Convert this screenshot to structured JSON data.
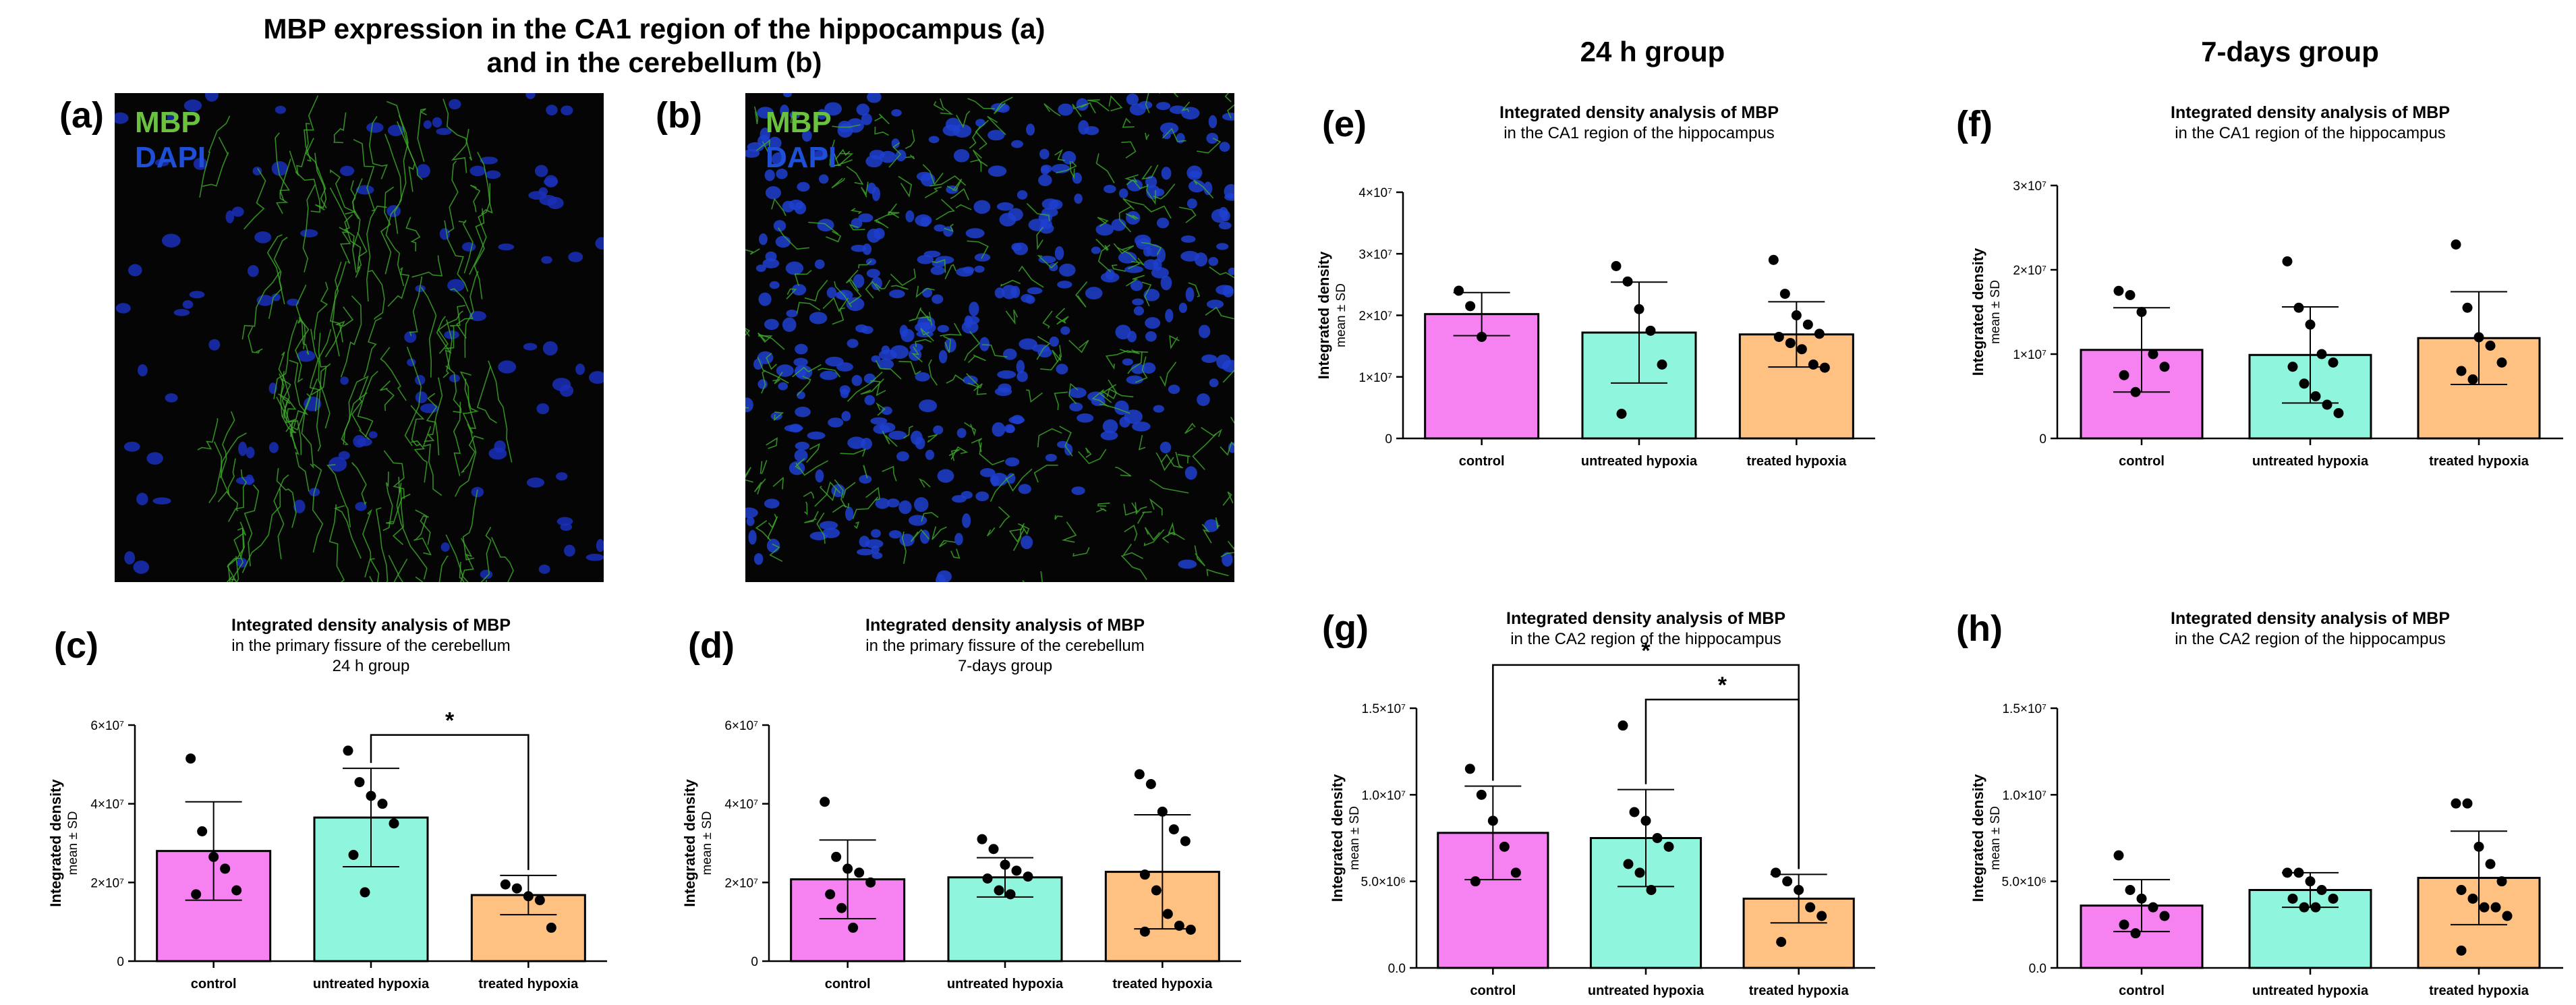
{
  "figure": {
    "left_title_line1": "MBP expression in the CA1 region of the hippocampus (a)",
    "left_title_line2": "and in the cerebellum (b)",
    "group_24h": "24 h group",
    "group_7d": "7-days group"
  },
  "micrographs": [
    {
      "label": "(a)",
      "legend_mbp": "MBP",
      "legend_dapi": "DAPI",
      "mbp_color": "#6bc23f",
      "dapi_color": "#1f4fd6"
    },
    {
      "label": "(b)",
      "legend_mbp": "MBP",
      "legend_dapi": "DAPI",
      "mbp_color": "#6bc23f",
      "dapi_color": "#1f4fd6"
    }
  ],
  "colors": {
    "control": "#f582f0",
    "untreated": "#8ff5dc",
    "treated": "#ffc182"
  },
  "chart_data": [
    {
      "id": "c",
      "label": "(c)",
      "type": "bar",
      "title": "Integrated density analysis of MBP",
      "subtitle": [
        "in the primary fissure of the cerebellum",
        "24 h group"
      ],
      "ylabel": "Integrated density",
      "ylabel2": "mean ± SD",
      "categories": [
        "control",
        "untreated hypoxia",
        "treated hypoxia"
      ],
      "ylim": [
        0,
        60000000
      ],
      "yticks": [
        0,
        20000000,
        40000000,
        60000000
      ],
      "yticklabels": [
        "0",
        "2×10⁷",
        "4×10⁷",
        "6×10⁷"
      ],
      "values": [
        28000000,
        36500000,
        16800000
      ],
      "sd": [
        12500000,
        12500000,
        5000000
      ],
      "points": [
        [
          51500000,
          33000000,
          26500000,
          23500000,
          18000000,
          17000000
        ],
        [
          53500000,
          45500000,
          42000000,
          40000000,
          35000000,
          27000000,
          17500000
        ],
        [
          19500000,
          18500000,
          16500000,
          15500000,
          8500000
        ]
      ],
      "sig": [
        {
          "from": 1,
          "to": 2,
          "y": 57500000,
          "label": "*"
        }
      ]
    },
    {
      "id": "d",
      "label": "(d)",
      "type": "bar",
      "title": "Integrated density analysis of MBP",
      "subtitle": [
        "in the primary fissure of the cerebellum",
        "7-days group"
      ],
      "ylabel": "Integrated density",
      "ylabel2": "mean ± SD",
      "categories": [
        "control",
        "untreated hypoxia",
        "treated hypoxia"
      ],
      "ylim": [
        0,
        60000000
      ],
      "yticks": [
        0,
        20000000,
        40000000,
        60000000
      ],
      "yticklabels": [
        "0",
        "2×10⁷",
        "4×10⁷",
        "6×10⁷"
      ],
      "values": [
        20800000,
        21300000,
        22700000
      ],
      "sd": [
        10000000,
        5000000,
        14500000
      ],
      "points": [
        [
          40500000,
          26500000,
          23500000,
          22500000,
          20000000,
          17000000,
          13500000,
          8500000
        ],
        [
          31000000,
          28500000,
          24500000,
          23000000,
          21500000,
          21000000,
          18000000,
          17000000
        ],
        [
          47500000,
          45000000,
          38000000,
          33500000,
          30500000,
          22000000,
          18000000,
          12000000,
          9000000,
          8000000,
          7500000
        ]
      ],
      "sig": []
    },
    {
      "id": "e",
      "label": "(e)",
      "type": "bar",
      "title": "Integrated density analysis of MBP",
      "subtitle": [
        "in the CA1 region of the hippocampus"
      ],
      "ylabel": "Integrated density",
      "ylabel2": "mean ± SD",
      "categories": [
        "control",
        "untreated hypoxia",
        "treated hypoxia"
      ],
      "ylim": [
        0,
        40000000
      ],
      "yticks": [
        0,
        10000000,
        20000000,
        30000000,
        40000000
      ],
      "yticklabels": [
        "0",
        "1×10⁷",
        "2×10⁷",
        "3×10⁷",
        "4×10⁷"
      ],
      "values": [
        20200000,
        17200000,
        16900000
      ],
      "sd": [
        3500000,
        8200000,
        5300000
      ],
      "points": [
        [
          24000000,
          21500000,
          16500000
        ],
        [
          28000000,
          25500000,
          21000000,
          17500000,
          12000000,
          4000000
        ],
        [
          29000000,
          23500000,
          20000000,
          18500000,
          17000000,
          16500000,
          15500000,
          14500000,
          12000000,
          11500000
        ]
      ],
      "sig": []
    },
    {
      "id": "f",
      "label": "(f)",
      "type": "bar",
      "title": "Integrated density analysis of MBP",
      "subtitle": [
        "in the CA1 region of the hippocampus"
      ],
      "ylabel": "Integrated density",
      "ylabel2": "mean ± SD",
      "categories": [
        "control",
        "untreated hypoxia",
        "treated hypoxia"
      ],
      "ylim": [
        0,
        30000000
      ],
      "yticks": [
        0,
        10000000,
        20000000,
        30000000
      ],
      "yticklabels": [
        "0",
        "1×10⁷",
        "2×10⁷",
        "3×10⁷"
      ],
      "values": [
        10500000,
        9900000,
        11900000
      ],
      "sd": [
        5000000,
        5700000,
        5500000
      ],
      "points": [
        [
          17500000,
          17000000,
          15000000,
          10000000,
          8500000,
          7500000,
          5500000
        ],
        [
          21000000,
          15500000,
          13500000,
          10000000,
          9000000,
          8500000,
          6500000,
          5000000,
          4000000,
          3000000
        ],
        [
          23000000,
          15500000,
          12000000,
          11000000,
          9000000,
          8000000,
          7000000
        ]
      ],
      "sig": []
    },
    {
      "id": "g",
      "label": "(g)",
      "type": "bar",
      "title": "Integrated density analysis of MBP",
      "subtitle": [
        "in the CA2 region of the hippocampus"
      ],
      "ylabel": "Integrated density",
      "ylabel2": "mean ± SD",
      "categories": [
        "control",
        "untreated hypoxia",
        "treated hypoxia"
      ],
      "ylim": [
        0,
        15000000
      ],
      "yticks": [
        0,
        5000000,
        10000000,
        15000000
      ],
      "yticklabels": [
        "0.0",
        "5.0×10⁶",
        "1.0×10⁷",
        "1.5×10⁷"
      ],
      "values": [
        7800000,
        7500000,
        4000000
      ],
      "sd": [
        2700000,
        2800000,
        1400000
      ],
      "points": [
        [
          11500000,
          10000000,
          8500000,
          7000000,
          5500000,
          5000000
        ],
        [
          14000000,
          9000000,
          8500000,
          7500000,
          7000000,
          6000000,
          5500000,
          4500000
        ],
        [
          5500000,
          5000000,
          4500000,
          3500000,
          3000000,
          1500000
        ]
      ],
      "sig": [
        {
          "from": 0,
          "to": 2,
          "y": 17500000,
          "label": "*"
        },
        {
          "from": 1,
          "to": 2,
          "y": 15500000,
          "label": "*"
        }
      ]
    },
    {
      "id": "h",
      "label": "(h)",
      "type": "bar",
      "title": "Integrated density analysis of MBP",
      "subtitle": [
        "in the CA2 region of the hippocampus"
      ],
      "ylabel": "Integrated density",
      "ylabel2": "mean ± SD",
      "categories": [
        "control",
        "untreated hypoxia",
        "treated hypoxia"
      ],
      "ylim": [
        0,
        15000000
      ],
      "yticks": [
        0,
        5000000,
        10000000,
        15000000
      ],
      "yticklabels": [
        "0.0",
        "5.0×10⁶",
        "1.0×10⁷",
        "1.5×10⁷"
      ],
      "values": [
        3600000,
        4500000,
        5200000
      ],
      "sd": [
        1500000,
        1000000,
        2700000
      ],
      "points": [
        [
          6500000,
          4500000,
          4000000,
          3500000,
          3000000,
          2500000,
          2000000
        ],
        [
          5500000,
          5500000,
          5000000,
          4500000,
          4000000,
          4000000,
          3500000,
          3500000
        ],
        [
          9500000,
          9500000,
          7000000,
          6000000,
          5000000,
          4500000,
          4000000,
          3500000,
          3500000,
          3000000,
          1000000
        ]
      ],
      "sig": []
    }
  ]
}
